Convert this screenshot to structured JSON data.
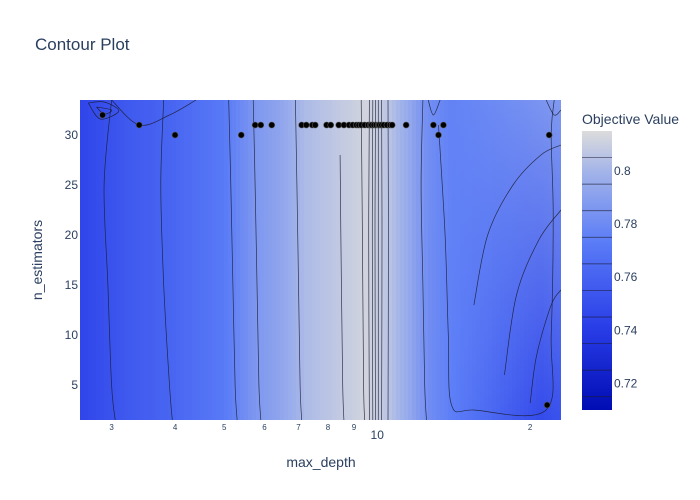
{
  "chart_data": {
    "type": "contour",
    "title": "Contour Plot",
    "xlabel": "max_depth",
    "ylabel": "n_estimators",
    "xscale": "log",
    "xlim": [
      2.6,
      23
    ],
    "ylim": [
      1.5,
      33.5
    ],
    "x_major_ticks": [
      {
        "value": 10,
        "label": "10"
      }
    ],
    "x_minor_ticks": [
      {
        "value": 3,
        "label": "3"
      },
      {
        "value": 4,
        "label": "4"
      },
      {
        "value": 5,
        "label": "5"
      },
      {
        "value": 6,
        "label": "6"
      },
      {
        "value": 7,
        "label": "7"
      },
      {
        "value": 8,
        "label": "8"
      },
      {
        "value": 9,
        "label": "9"
      },
      {
        "value": 20,
        "label": "2"
      }
    ],
    "y_ticks": [
      5,
      10,
      15,
      20,
      25,
      30
    ],
    "colorbar": {
      "title": "Objective Value",
      "min": 0.71,
      "max": 0.815,
      "ticks": [
        0.72,
        0.74,
        0.76,
        0.78,
        0.8
      ],
      "colorscale": [
        [
          0,
          "#000cb4"
        ],
        [
          0.3,
          "#2a3ee8"
        ],
        [
          0.6,
          "#5a7cf7"
        ],
        [
          0.85,
          "#a2b3e9"
        ],
        [
          1,
          "#dcdcdc"
        ]
      ]
    },
    "column_profile": [
      {
        "x": 2.6,
        "top": 0.745,
        "bottom": 0.745
      },
      {
        "x": 3.2,
        "top": 0.755,
        "bottom": 0.755
      },
      {
        "x": 4.0,
        "top": 0.762,
        "bottom": 0.762
      },
      {
        "x": 5.0,
        "top": 0.772,
        "bottom": 0.772
      },
      {
        "x": 5.7,
        "top": 0.785,
        "bottom": 0.785
      },
      {
        "x": 6.5,
        "top": 0.793,
        "bottom": 0.793
      },
      {
        "x": 7.2,
        "top": 0.802,
        "bottom": 0.802
      },
      {
        "x": 8.5,
        "top": 0.808,
        "bottom": 0.808
      },
      {
        "x": 9.5,
        "top": 0.812,
        "bottom": 0.812
      },
      {
        "x": 10.5,
        "top": 0.806,
        "bottom": 0.806
      },
      {
        "x": 11.5,
        "top": 0.795,
        "bottom": 0.795
      },
      {
        "x": 12.5,
        "top": 0.782,
        "bottom": 0.782
      },
      {
        "x": 14.0,
        "top": 0.776,
        "bottom": 0.774
      },
      {
        "x": 15.5,
        "top": 0.778,
        "bottom": 0.768
      },
      {
        "x": 18.0,
        "top": 0.781,
        "bottom": 0.758
      },
      {
        "x": 21.0,
        "top": 0.785,
        "bottom": 0.748
      },
      {
        "x": 23.0,
        "top": 0.787,
        "bottom": 0.752
      }
    ],
    "contour_lines": [
      {
        "points": [
          [
            3.0,
            33.5
          ],
          [
            2.9,
            25
          ],
          [
            2.95,
            15
          ],
          [
            3.0,
            5
          ],
          [
            3.05,
            1.5
          ]
        ]
      },
      {
        "points": [
          [
            3.8,
            33.5
          ],
          [
            3.75,
            25
          ],
          [
            3.8,
            15
          ],
          [
            3.9,
            5
          ],
          [
            3.95,
            1.5
          ]
        ]
      },
      {
        "points": [
          [
            5.1,
            33.5
          ],
          [
            5.15,
            25
          ],
          [
            5.2,
            15
          ],
          [
            5.25,
            5
          ],
          [
            5.3,
            1.5
          ]
        ]
      },
      {
        "points": [
          [
            5.7,
            33.5
          ],
          [
            5.75,
            25
          ],
          [
            5.8,
            15
          ],
          [
            5.85,
            5
          ],
          [
            5.9,
            1.5
          ]
        ]
      },
      {
        "points": [
          [
            6.9,
            33.5
          ],
          [
            6.95,
            25
          ],
          [
            7.0,
            15
          ],
          [
            7.05,
            5
          ],
          [
            7.1,
            1.5
          ]
        ]
      },
      {
        "points": [
          [
            8.45,
            28
          ],
          [
            8.5,
            15
          ],
          [
            8.55,
            5
          ],
          [
            8.6,
            1.5
          ]
        ]
      },
      {
        "points": [
          [
            9.3,
            33.5
          ],
          [
            9.35,
            20
          ],
          [
            9.4,
            5
          ],
          [
            9.45,
            1.5
          ]
        ]
      },
      {
        "points": [
          [
            9.65,
            33.5
          ],
          [
            9.62,
            20
          ],
          [
            9.65,
            1.5
          ]
        ]
      },
      {
        "points": [
          [
            9.8,
            33.5
          ],
          [
            9.78,
            20
          ],
          [
            9.8,
            1.5
          ]
        ]
      },
      {
        "points": [
          [
            9.92,
            33.5
          ],
          [
            9.9,
            20
          ],
          [
            9.92,
            1.5
          ]
        ]
      },
      {
        "points": [
          [
            10.05,
            33.5
          ],
          [
            10.05,
            20
          ],
          [
            10.05,
            1.5
          ]
        ]
      },
      {
        "points": [
          [
            10.2,
            33.5
          ],
          [
            10.22,
            20
          ],
          [
            10.2,
            1.5
          ]
        ]
      },
      {
        "points": [
          [
            10.5,
            33.5
          ],
          [
            10.52,
            20
          ],
          [
            10.5,
            1.5
          ]
        ]
      },
      {
        "points": [
          [
            12.3,
            33.5
          ],
          [
            12.2,
            25
          ],
          [
            12.3,
            15
          ],
          [
            12.4,
            5
          ],
          [
            12.5,
            1.5
          ]
        ]
      },
      {
        "points": [
          [
            13.2,
            31
          ],
          [
            13.6,
            20
          ],
          [
            13.8,
            10
          ],
          [
            14.0,
            3
          ],
          [
            15.5,
            2.5
          ],
          [
            21.5,
            2.5
          ],
          [
            22.0,
            10
          ],
          [
            22.2,
            22
          ],
          [
            22.0,
            30
          ],
          [
            22.3,
            33.5
          ]
        ]
      },
      {
        "points": [
          [
            15.5,
            13
          ],
          [
            16.5,
            20
          ],
          [
            18.5,
            25
          ],
          [
            21.0,
            28
          ],
          [
            23.0,
            29
          ]
        ]
      },
      {
        "points": [
          [
            17.8,
            6
          ],
          [
            18.8,
            14
          ],
          [
            20.8,
            19.5
          ],
          [
            23.0,
            22.5
          ]
        ]
      },
      {
        "points": [
          [
            20.0,
            3.2
          ],
          [
            20.6,
            8
          ],
          [
            22.0,
            13
          ],
          [
            23.0,
            14.5
          ]
        ]
      },
      {
        "points": [
          [
            12.6,
            33.5
          ],
          [
            12.9,
            32
          ],
          [
            13.3,
            33.5
          ]
        ]
      },
      {
        "points": [
          [
            21.5,
            33.5
          ],
          [
            22.3,
            32
          ],
          [
            23.0,
            32.5
          ]
        ]
      },
      {
        "points": [
          [
            3.0,
            33.5
          ],
          [
            3.4,
            31
          ],
          [
            3.9,
            32
          ],
          [
            4.4,
            33.5
          ]
        ]
      },
      {
        "points": [
          [
            2.7,
            33.2
          ],
          [
            2.85,
            31.6
          ],
          [
            3.1,
            32.4
          ],
          [
            2.9,
            33.3
          ],
          [
            2.7,
            33.2
          ]
        ]
      },
      {
        "points": [
          [
            2.8,
            32.8
          ],
          [
            2.9,
            32.1
          ],
          [
            3.0,
            32.5
          ],
          [
            2.8,
            32.8
          ]
        ]
      }
    ],
    "trials": [
      [
        2.88,
        32
      ],
      [
        3.4,
        31
      ],
      [
        4.0,
        30
      ],
      [
        5.4,
        30
      ],
      [
        5.75,
        31
      ],
      [
        5.9,
        31
      ],
      [
        6.2,
        31
      ],
      [
        7.1,
        31
      ],
      [
        7.25,
        31
      ],
      [
        7.45,
        31
      ],
      [
        7.55,
        31
      ],
      [
        7.95,
        31
      ],
      [
        8.1,
        31
      ],
      [
        8.4,
        31
      ],
      [
        8.6,
        31
      ],
      [
        8.8,
        31
      ],
      [
        8.95,
        31
      ],
      [
        9.1,
        31
      ],
      [
        9.2,
        31
      ],
      [
        9.3,
        31
      ],
      [
        9.45,
        31
      ],
      [
        9.6,
        31
      ],
      [
        9.7,
        31
      ],
      [
        9.75,
        31
      ],
      [
        9.85,
        31
      ],
      [
        9.95,
        31
      ],
      [
        10.05,
        31
      ],
      [
        10.1,
        31
      ],
      [
        10.2,
        31
      ],
      [
        10.3,
        31
      ],
      [
        10.45,
        31
      ],
      [
        10.6,
        31
      ],
      [
        10.7,
        31
      ],
      [
        11.4,
        31
      ],
      [
        12.9,
        31
      ],
      [
        13.2,
        30
      ],
      [
        13.5,
        31
      ],
      [
        21.8,
        30
      ],
      [
        21.6,
        3
      ]
    ]
  }
}
